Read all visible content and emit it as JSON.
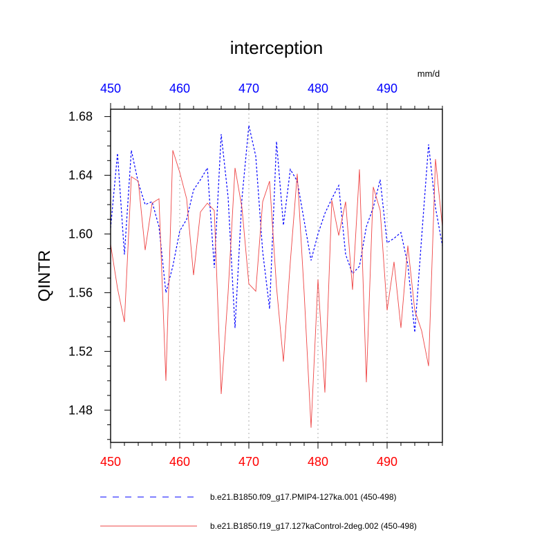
{
  "chart_data": {
    "type": "line",
    "title": "interception",
    "ylabel": "QINTR",
    "units": "mm/d",
    "xlim": [
      450,
      498
    ],
    "ylim": [
      1.458,
      1.685
    ],
    "x_ticks": [
      450,
      460,
      470,
      480,
      490
    ],
    "x_tick_labels": [
      "450",
      "460",
      "470",
      "480",
      "490"
    ],
    "y_ticks": [
      1.48,
      1.52,
      1.56,
      1.6,
      1.64,
      1.68
    ],
    "y_tick_labels": [
      "1.48",
      "1.52",
      "1.56",
      "1.60",
      "1.64",
      "1.68"
    ],
    "x_grid": true,
    "colors": {
      "top_axis": "#0000ff",
      "bottom_axis": "#ff0000",
      "series_blue": "#0000ff",
      "series_red": "#ee4444",
      "grid": "#bbbbbb",
      "frame": "#000000"
    },
    "x": [
      450,
      451,
      452,
      453,
      454,
      455,
      456,
      457,
      458,
      459,
      460,
      461,
      462,
      463,
      464,
      465,
      466,
      467,
      468,
      469,
      470,
      471,
      472,
      473,
      474,
      475,
      476,
      477,
      478,
      479,
      480,
      481,
      482,
      483,
      484,
      485,
      486,
      487,
      488,
      489,
      490,
      491,
      492,
      493,
      494,
      495,
      496,
      497,
      498
    ],
    "series": [
      {
        "name": "b.e21.B1850.f09_g17.PMIP4-127ka.001 (450-498)",
        "style": "dashed",
        "values": [
          1.604,
          1.655,
          1.586,
          1.657,
          1.635,
          1.62,
          1.622,
          1.605,
          1.56,
          1.578,
          1.602,
          1.61,
          1.63,
          1.637,
          1.645,
          1.577,
          1.668,
          1.625,
          1.536,
          1.624,
          1.674,
          1.653,
          1.588,
          1.549,
          1.663,
          1.606,
          1.644,
          1.636,
          1.609,
          1.582,
          1.6,
          1.614,
          1.624,
          1.633,
          1.586,
          1.573,
          1.578,
          1.605,
          1.618,
          1.637,
          1.594,
          1.597,
          1.601,
          1.579,
          1.533,
          1.598,
          1.661,
          1.618,
          1.592
        ]
      },
      {
        "name": "b.e21.B1850.f19_g17.127kaControl-2deg.002 (450-498)",
        "style": "solid",
        "values": [
          1.593,
          1.563,
          1.54,
          1.639,
          1.636,
          1.589,
          1.621,
          1.624,
          1.5,
          1.657,
          1.642,
          1.624,
          1.572,
          1.615,
          1.621,
          1.616,
          1.491,
          1.56,
          1.645,
          1.618,
          1.566,
          1.561,
          1.622,
          1.636,
          1.564,
          1.513,
          1.581,
          1.641,
          1.56,
          1.468,
          1.569,
          1.492,
          1.623,
          1.599,
          1.622,
          1.562,
          1.644,
          1.499,
          1.632,
          1.616,
          1.548,
          1.581,
          1.536,
          1.592,
          1.548,
          1.534,
          1.51,
          1.651,
          1.605
        ]
      }
    ]
  }
}
